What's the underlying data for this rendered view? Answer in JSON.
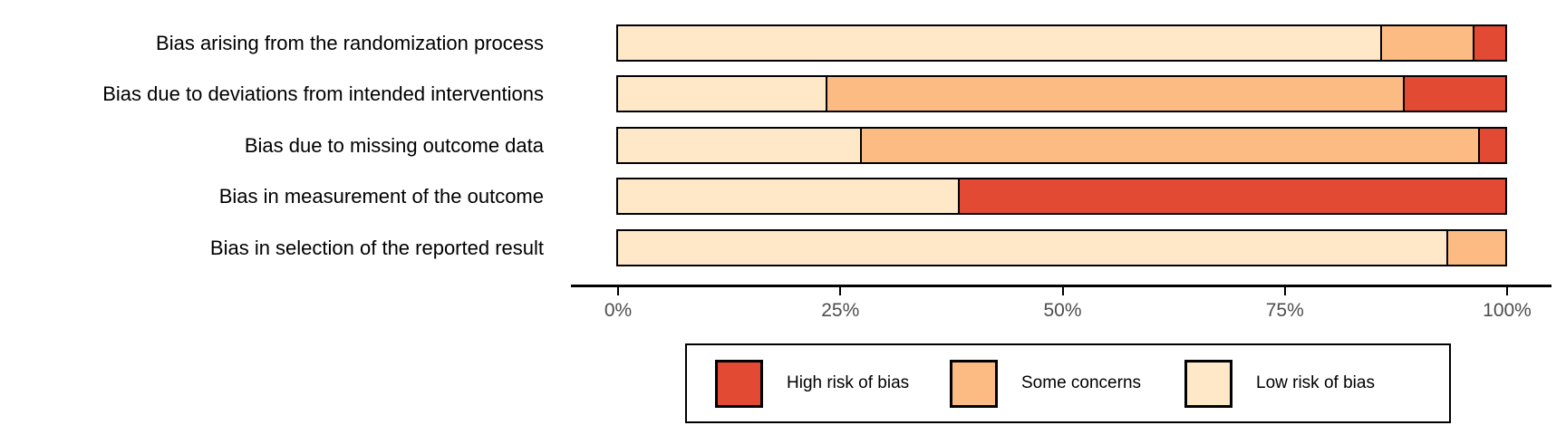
{
  "chart_data": {
    "type": "bar",
    "orientation": "horizontal",
    "stacked": true,
    "unit": "percent",
    "title": "",
    "xlabel": "",
    "ylabel": "",
    "categories": [
      "Bias arising from the randomization process",
      "Bias due to deviations from intended interventions",
      "Bias due to missing outcome data",
      "Bias in measurement of the outcome",
      "Bias in selection of the reported result"
    ],
    "series": [
      {
        "name": "Low risk of bias",
        "color": "#FEE8C8",
        "values": [
          85.9,
          23.4,
          27.3,
          38.3,
          93.4
        ]
      },
      {
        "name": "Some concerns",
        "color": "#FDBB84",
        "values": [
          10.4,
          65.1,
          69.6,
          0.0,
          6.6
        ]
      },
      {
        "name": "High risk of bias",
        "color": "#E34A33",
        "values": [
          3.7,
          11.5,
          3.1,
          61.7,
          0.0
        ]
      }
    ],
    "x_axis": {
      "range": [
        0,
        100
      ],
      "ticks": [
        "0%",
        "25%",
        "50%",
        "75%",
        "100%"
      ],
      "tick_color": "#4d4d4d",
      "line_color": "#000000",
      "grid": false
    },
    "legend": {
      "position": "bottom",
      "border": true,
      "entries": [
        {
          "label": "High risk of bias",
          "color": "#E34A33"
        },
        {
          "label": "Some concerns",
          "color": "#FDBB84"
        },
        {
          "label": "Low risk of bias",
          "color": "#FEE8C8"
        }
      ]
    }
  }
}
